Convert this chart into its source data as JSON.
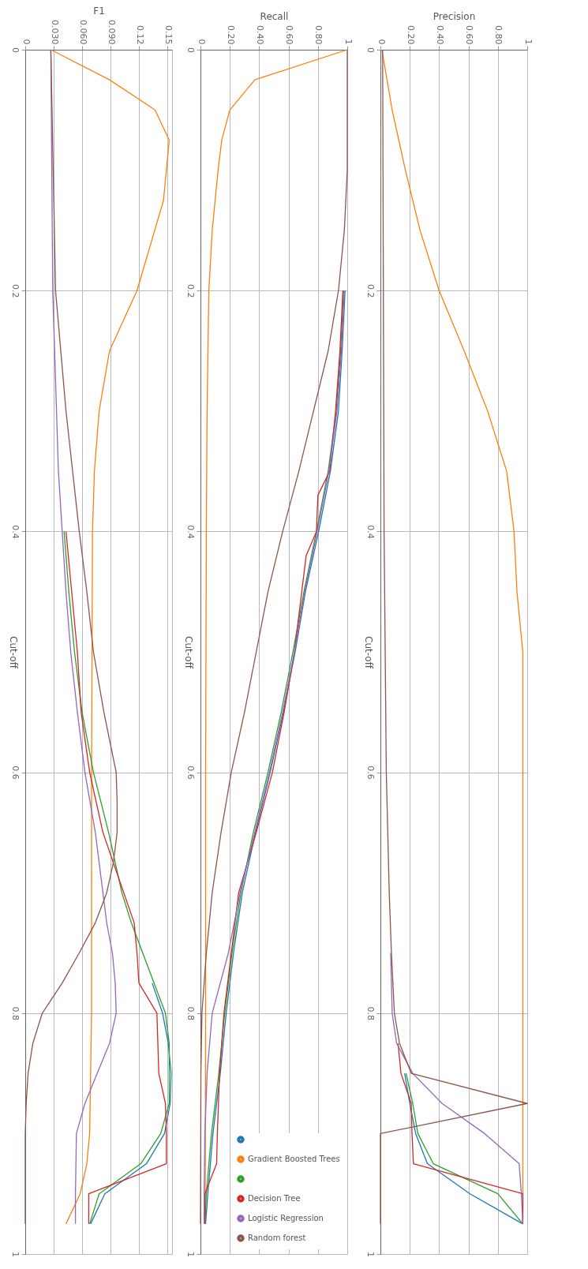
{
  "chart_data": [
    {
      "type": "line",
      "xlabel": "F1",
      "ylabel": "Cut-off",
      "xlim": [
        0,
        0.155
      ],
      "xticks": [
        0,
        {
          "value": 0.03,
          "label": "0.030"
        },
        {
          "value": 0.06,
          "label": "0.060"
        },
        {
          "value": 0.09,
          "label": "0.090"
        },
        0.12,
        0.15
      ],
      "ylim": [
        1,
        0
      ],
      "yticks": [
        0,
        0.2,
        0.4,
        0.6,
        0.8,
        1
      ],
      "grid": true,
      "legend": false,
      "line_style": "solid",
      "series": [
        {
          "color": "#1f77b4",
          "values": [
            null,
            null,
            null,
            null,
            null,
            null,
            null,
            null,
            null,
            null,
            null,
            null,
            null,
            null,
            0.775,
            0.8,
            0.825,
            0.85,
            0.875,
            0.9,
            0.925,
            0.95,
            0.975
          ],
          "x": [
            null,
            null,
            null,
            null,
            null,
            null,
            null,
            null,
            null,
            null,
            null,
            null,
            null,
            null,
            0.134,
            0.145,
            0.151,
            0.154,
            0.153,
            0.147,
            0.128,
            0.084,
            0.069
          ]
        },
        {
          "color": "#ff7f0e",
          "values": [
            0,
            0.025,
            0.05,
            0.075,
            0.125,
            0.2,
            0.25,
            0.3,
            0.35,
            0.4,
            0.6,
            0.8,
            0.9,
            0.925,
            0.95,
            0.975
          ],
          "x": [
            0.027,
            0.089,
            0.137,
            0.152,
            0.146,
            0.118,
            0.089,
            0.078,
            0.073,
            0.071,
            0.07,
            0.07,
            0.068,
            0.065,
            0.058,
            0.043
          ]
        },
        {
          "color": "#2ca02c",
          "values": [
            null,
            null,
            null,
            null,
            null,
            0.4,
            0.45,
            0.5,
            0.55,
            0.6,
            0.65,
            0.7,
            0.725,
            0.75,
            0.775,
            0.8,
            0.825,
            0.85,
            0.875,
            0.9,
            0.925,
            0.95,
            0.975
          ],
          "x": [
            null,
            null,
            null,
            null,
            null,
            0.041,
            0.046,
            0.052,
            0.06,
            0.072,
            0.088,
            0.102,
            0.112,
            0.124,
            0.136,
            0.148,
            0.152,
            0.152,
            0.152,
            0.143,
            0.122,
            0.078,
            0.068
          ]
        },
        {
          "color": "#d62728",
          "values": [
            null,
            null,
            null,
            null,
            null,
            0.4,
            0.45,
            0.5,
            0.55,
            0.6,
            0.65,
            0.7,
            0.725,
            0.75,
            0.775,
            0.8,
            0.825,
            0.85,
            0.875,
            0.9,
            0.925,
            0.95,
            0.975
          ],
          "x": [
            null,
            null,
            null,
            null,
            null,
            0.043,
            0.049,
            0.055,
            0.059,
            0.068,
            0.082,
            0.104,
            0.115,
            0.118,
            0.12,
            0.139,
            0.14,
            0.141,
            0.148,
            0.149,
            0.149,
            0.067,
            0.067
          ]
        },
        {
          "color": "#9467bd",
          "values": [
            0,
            0.2,
            0.25,
            0.3,
            0.35,
            0.4,
            0.45,
            0.5,
            0.55,
            0.6,
            0.65,
            0.7,
            0.725,
            0.75,
            0.775,
            0.8,
            0.825,
            0.85,
            0.875,
            0.9,
            0.925,
            0.95,
            0.975
          ],
          "x": [
            0.027,
            0.029,
            0.031,
            0.033,
            0.035,
            0.039,
            0.043,
            0.048,
            0.055,
            0.063,
            0.074,
            0.082,
            0.086,
            0.092,
            0.095,
            0.096,
            0.089,
            0.076,
            0.063,
            0.054,
            0.0535,
            0.053,
            0.053
          ]
        },
        {
          "color": "#8c564b",
          "values": [
            0,
            0.2,
            0.3,
            0.4,
            0.45,
            0.5,
            0.55,
            0.6,
            0.625,
            0.65,
            0.675,
            0.7,
            0.725,
            0.75,
            0.775,
            0.8,
            0.825,
            0.85,
            0.875,
            0.9,
            0.975
          ],
          "x": [
            0.027,
            0.032,
            0.043,
            0.057,
            0.065,
            0.072,
            0.083,
            0.096,
            0.097,
            0.097,
            0.093,
            0.086,
            0.074,
            0.057,
            0.039,
            0.018,
            0.008,
            0.003,
            0.001,
            0,
            0
          ]
        }
      ]
    },
    {
      "type": "line",
      "xlabel": "Recall",
      "ylabel": "Cut-off",
      "xlim": [
        0,
        1
      ],
      "xticks": [
        0,
        {
          "value": 0.2,
          "label": "0.20"
        },
        {
          "value": 0.4,
          "label": "0.40"
        },
        {
          "value": 0.6,
          "label": "0.60"
        },
        {
          "value": 0.8,
          "label": "0.80"
        },
        1
      ],
      "ylim": [
        1,
        0
      ],
      "yticks": [
        0,
        0.2,
        0.4,
        0.6,
        0.8,
        1
      ],
      "grid": true,
      "legend": "bottom right",
      "line_style": "solid",
      "series": [
        {
          "color": "#1f77b4",
          "values": [
            null,
            null,
            null,
            0.2,
            0.25,
            0.3,
            0.35,
            0.4,
            0.45,
            0.5,
            0.55,
            0.6,
            0.65,
            0.7,
            0.75,
            0.8,
            0.85,
            0.9,
            0.95,
            0.975
          ],
          "x": [
            null,
            null,
            null,
            0.985,
            0.965,
            0.94,
            0.885,
            0.805,
            0.715,
            0.645,
            0.565,
            0.475,
            0.375,
            0.285,
            0.225,
            0.175,
            0.135,
            0.085,
            0.05,
            0.035
          ]
        },
        {
          "name": "Gradient Boosted Trees",
          "color": "#ff7f0e",
          "values": [
            0,
            0.025,
            0.05,
            0.075,
            0.1,
            0.15,
            0.2,
            0.3,
            0.4,
            0.6,
            0.8,
            0.975
          ],
          "x": [
            1,
            0.37,
            0.2,
            0.145,
            0.12,
            0.08,
            0.057,
            0.045,
            0.04,
            0.035,
            0.035,
            0.032
          ]
        },
        {
          "color": "#2ca02c",
          "values": [
            null,
            null,
            null,
            0.2,
            0.25,
            0.3,
            0.35,
            0.4,
            0.45,
            0.5,
            0.55,
            0.6,
            0.65,
            0.7,
            0.75,
            0.8,
            0.85,
            0.9,
            0.95,
            0.975
          ],
          "x": [
            null,
            null,
            null,
            0.975,
            0.955,
            0.925,
            0.87,
            0.79,
            0.705,
            0.63,
            0.55,
            0.46,
            0.36,
            0.275,
            0.215,
            0.165,
            0.125,
            0.075,
            0.04,
            0.03
          ]
        },
        {
          "name": "Decision Tree",
          "color": "#d62728",
          "values": [
            null,
            null,
            null,
            0.2,
            0.25,
            0.3,
            0.35,
            0.37,
            0.4,
            0.42,
            0.45,
            0.5,
            0.55,
            0.6,
            0.65,
            0.7,
            0.75,
            0.8,
            0.85,
            0.9,
            0.925,
            0.95,
            0.975
          ],
          "x": [
            null,
            null,
            null,
            0.97,
            0.95,
            0.92,
            0.88,
            0.8,
            0.79,
            0.72,
            0.69,
            0.64,
            0.57,
            0.49,
            0.38,
            0.26,
            0.21,
            0.16,
            0.13,
            0.115,
            0.11,
            0.03,
            0.03
          ]
        },
        {
          "name": "Logistic Regression",
          "color": "#9467bd",
          "values": [
            null,
            null,
            null,
            0.2,
            0.25,
            0.3,
            0.35,
            0.4,
            0.45,
            0.5,
            0.55,
            0.6,
            0.65,
            0.7,
            0.75,
            0.8,
            0.85,
            0.9,
            0.95,
            0.975
          ],
          "x": [
            null,
            null,
            null,
            0.98,
            0.96,
            0.93,
            0.875,
            0.795,
            0.71,
            0.64,
            0.56,
            0.47,
            0.37,
            0.27,
            0.19,
            0.08,
            0.045,
            0.03,
            0.025,
            0.025
          ]
        },
        {
          "name": "Random forest",
          "color": "#8c564b",
          "values": [
            0,
            0.1,
            0.15,
            0.2,
            0.25,
            0.3,
            0.35,
            0.4,
            0.45,
            0.5,
            0.55,
            0.6,
            0.65,
            0.7,
            0.75,
            0.8,
            0.85,
            0.975
          ],
          "x": [
            1,
            1,
            0.98,
            0.94,
            0.87,
            0.77,
            0.67,
            0.56,
            0.46,
            0.38,
            0.3,
            0.21,
            0.14,
            0.08,
            0.04,
            0.01,
            0.003,
            0
          ]
        }
      ]
    },
    {
      "type": "line",
      "xlabel": "Precision",
      "ylabel": "Cut-off",
      "xlim": [
        0,
        1
      ],
      "xticks": [
        0,
        {
          "value": 0.2,
          "label": "0.20"
        },
        {
          "value": 0.4,
          "label": "0.40"
        },
        {
          "value": 0.6,
          "label": "0.60"
        },
        {
          "value": 0.8,
          "label": "0.80"
        },
        1
      ],
      "ylim": [
        1,
        0
      ],
      "yticks": [
        0,
        0.2,
        0.4,
        0.6,
        0.8,
        1
      ],
      "grid": true,
      "legend": false,
      "line_style": "solid",
      "series": [
        {
          "color": "#1f77b4",
          "values": [
            null,
            null,
            null,
            null,
            null,
            null,
            null,
            null,
            0.85,
            0.875,
            0.9,
            0.925,
            0.95,
            0.975
          ],
          "x": [
            null,
            null,
            null,
            null,
            null,
            null,
            null,
            null,
            0.165,
            0.2,
            0.24,
            0.32,
            0.61,
            0.97
          ]
        },
        {
          "color": "#ff7f0e",
          "values": [
            0,
            0.05,
            0.1,
            0.15,
            0.2,
            0.25,
            0.3,
            0.35,
            0.4,
            0.45,
            0.5,
            0.6,
            0.8,
            0.975
          ],
          "x": [
            0.01,
            0.08,
            0.17,
            0.27,
            0.4,
            0.57,
            0.73,
            0.86,
            0.91,
            0.93,
            0.97,
            0.97,
            0.97,
            0.97
          ]
        },
        {
          "color": "#2ca02c",
          "values": [
            null,
            null,
            null,
            null,
            null,
            null,
            null,
            null,
            0.85,
            0.875,
            0.9,
            0.925,
            0.95,
            0.975
          ],
          "x": [
            null,
            null,
            null,
            null,
            null,
            null,
            null,
            null,
            0.175,
            0.22,
            0.255,
            0.36,
            0.8,
            0.97
          ]
        },
        {
          "color": "#d62728",
          "values": [
            null,
            null,
            null,
            null,
            null,
            null,
            null,
            0.825,
            0.85,
            0.875,
            0.9,
            0.925,
            0.95,
            0.975
          ],
          "x": [
            null,
            null,
            null,
            null,
            null,
            null,
            null,
            0.12,
            0.14,
            0.21,
            0.215,
            0.225,
            0.97,
            0.97
          ]
        },
        {
          "color": "#9467bd",
          "values": [
            null,
            null,
            null,
            null,
            null,
            0.75,
            0.8,
            0.825,
            0.85,
            0.875,
            0.9,
            0.925,
            0.95,
            0.975
          ],
          "x": [
            null,
            null,
            null,
            null,
            null,
            0.07,
            0.08,
            0.11,
            0.22,
            0.42,
            0.71,
            0.945,
            0.96,
            0.97
          ]
        },
        {
          "color": "#8c564b",
          "values": [
            0,
            0.2,
            0.4,
            0.6,
            0.7,
            0.75,
            0.8,
            0.825,
            0.85,
            0.875,
            0.9,
            0.925,
            0.95,
            0.975
          ],
          "x": [
            0.015,
            0.02,
            0.025,
            0.04,
            0.06,
            0.075,
            0.095,
            0.13,
            0.21,
            1.0,
            0,
            0,
            0,
            0
          ]
        }
      ]
    }
  ]
}
